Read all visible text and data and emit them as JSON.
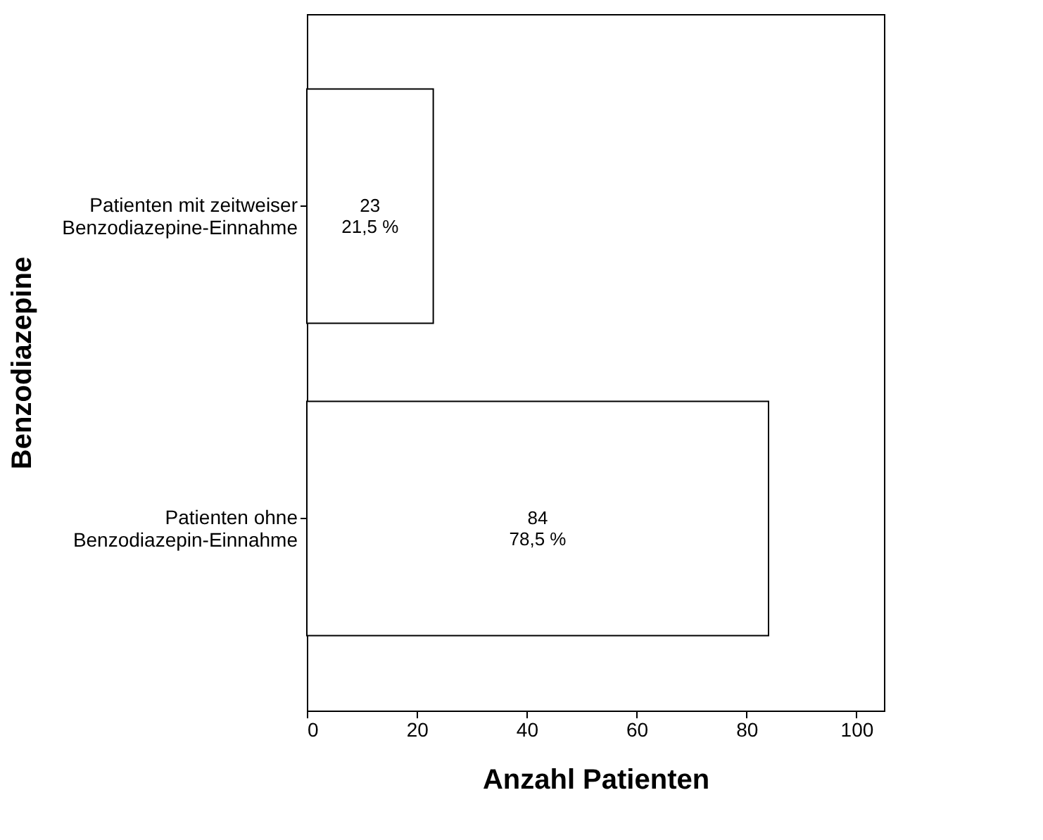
{
  "chart_data": {
    "type": "bar",
    "orientation": "horizontal",
    "categories": [
      "Patienten mit zeitweiser\nBenzodiazepine-Einnahme",
      "Patienten ohne\nBenzodiazepin-Einnahme"
    ],
    "values": [
      23,
      84
    ],
    "color": "#ffffff",
    "value_labels": [
      "23\n21,5 %",
      "84\n78,5 %"
    ],
    "xlabel": "Anzahl Patienten",
    "ylabel": "Benzodiazepine",
    "xlim": [
      0,
      105
    ],
    "xticks": [
      0,
      20,
      40,
      60,
      80,
      100
    ],
    "grid": false
  }
}
